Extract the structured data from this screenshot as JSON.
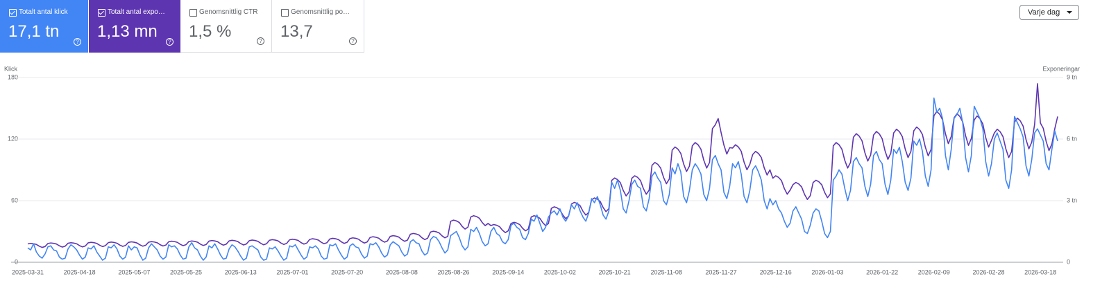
{
  "metrics": [
    {
      "label": "Totalt antal klick",
      "value": "17,1 tn"
    },
    {
      "label": "Totalt antal expo…",
      "value": "1,13 mn"
    },
    {
      "label": "Genomsnittlig CTR",
      "value": "1,5 %"
    },
    {
      "label": "Genomsnittlig po…",
      "value": "13,7"
    }
  ],
  "period_select": "Varje dag",
  "chart_data": {
    "type": "line",
    "y_label": "Klick",
    "y2_label": "Exponeringar",
    "categories": [
      "2025-03-31",
      null,
      null,
      null,
      null,
      null,
      null,
      null,
      null,
      null,
      null,
      null,
      null,
      null,
      null,
      null,
      null,
      null,
      "2025-04-18",
      null,
      null,
      null,
      null,
      null,
      null,
      null,
      null,
      null,
      null,
      null,
      null,
      null,
      null,
      null,
      null,
      null,
      null,
      "2025-05-07",
      null,
      null,
      null,
      null,
      null,
      null,
      null,
      null,
      null,
      null,
      null,
      null,
      null,
      null,
      null,
      null,
      null,
      "2025-05-25",
      null,
      null,
      null,
      null,
      null,
      null,
      null,
      null,
      null,
      null,
      null,
      null,
      null,
      null,
      null,
      null,
      null,
      null,
      "2025-06-13",
      null,
      null,
      null,
      null,
      null,
      null,
      null,
      null,
      null,
      null,
      null,
      null,
      null,
      null,
      null,
      null,
      null,
      "2025-07-01",
      null,
      null,
      null,
      null,
      null,
      null,
      null,
      null,
      null,
      null,
      null,
      null,
      null,
      null,
      null,
      null,
      null,
      null,
      "2025-07-20",
      null,
      null,
      null,
      null,
      null,
      null,
      null,
      null,
      null,
      null,
      null,
      null,
      null,
      null,
      null,
      null,
      null,
      null,
      "2025-08-08",
      null,
      null,
      null,
      null,
      null,
      null,
      null,
      null,
      null,
      null,
      null,
      null,
      null,
      null,
      null,
      null,
      null,
      "2025-08-26",
      null,
      null,
      null,
      null,
      null,
      null,
      null,
      null,
      null,
      null,
      null,
      null,
      null,
      null,
      null,
      null,
      null,
      null,
      "2025-09-14",
      null,
      null,
      null,
      null,
      null,
      null,
      null,
      null,
      null,
      null,
      null,
      null,
      null,
      null,
      null,
      null,
      null,
      "2025-10-02",
      null,
      null,
      null,
      null,
      null,
      null,
      null,
      null,
      null,
      null,
      null,
      null,
      null,
      null,
      null,
      null,
      null,
      null,
      "2025-10-21",
      null,
      null,
      null,
      null,
      null,
      null,
      null,
      null,
      null,
      null,
      null,
      null,
      null,
      null,
      null,
      null,
      null,
      "2025-11-08",
      null,
      null,
      null,
      null,
      null,
      null,
      null,
      null,
      null,
      null,
      null,
      null,
      null,
      null,
      null,
      null,
      null,
      null,
      "2025-11-27",
      null,
      null,
      null,
      null,
      null,
      null,
      null,
      null,
      null,
      null,
      null,
      null,
      null,
      null,
      null,
      null,
      null,
      null,
      "2025-12-16",
      null,
      null,
      null,
      null,
      null,
      null,
      null,
      null,
      null,
      null,
      null,
      null,
      null,
      null,
      null,
      null,
      null,
      "2026-01-03",
      null,
      null,
      null,
      null,
      null,
      null,
      null,
      null,
      null,
      null,
      null,
      null,
      null,
      null,
      null,
      null,
      null,
      null,
      "2026-01-22",
      null,
      null,
      null,
      null,
      null,
      null,
      null,
      null,
      null,
      null,
      null,
      null,
      null,
      null,
      null,
      null,
      null,
      "2026-02-09",
      null,
      null,
      null,
      null,
      null,
      null,
      null,
      null,
      null,
      null,
      null,
      null,
      null,
      null,
      null,
      null,
      null,
      null,
      "2026-02-28",
      null,
      null,
      null,
      null,
      null,
      null,
      null,
      null,
      null,
      null,
      null,
      null,
      null,
      null,
      null,
      null,
      null,
      "2026-03-18",
      null,
      null,
      null,
      null,
      null,
      null
    ],
    "series": [
      {
        "name": "Totalt antal exponeringar",
        "color": "#5e35b1",
        "axis": "y2",
        "values": [
          893,
          918,
          901,
          867,
          782,
          723,
          765,
          914,
          940,
          922,
          887,
          800,
          740,
          783,
          924,
          950,
          933,
          898,
          810,
          748,
          792,
          945,
          972,
          954,
          918,
          828,
          765,
          810,
          956,
          983,
          965,
          928,
          837,
          774,
          819,
          966,
          994,
          975,
          938,
          846,
          782,
          828,
          977,
          1004,
          986,
          949,
          856,
          791,
          837,
          998,
          1026,
          1007,
          969,
          874,
          808,
          855,
          1008,
          1037,
          1018,
          979,
          883,
          816,
          864,
          1029,
          1058,
          1039,
          1000,
          902,
          833,
          882,
          1040,
          1069,
          1049,
          1010,
          911,
          842,
          891,
          1050,
          1080,
          1060,
          1020,
          920,
          850,
          900,
          1071,
          1102,
          1081,
          1040,
          938,
          867,
          918,
          1092,
          1123,
          1102,
          1061,
          957,
          884,
          936,
          1113,
          1145,
          1124,
          1081,
          975,
          901,
          954,
          1134,
          1166,
          1145,
          1102,
          994,
          918,
          972,
          1155,
          1188,
          1166,
          1122,
          1012,
          935,
          990,
          1208,
          1242,
          1219,
          1173,
          1058,
          978,
          1035,
          1260,
          1296,
          1272,
          1224,
          1104,
          1020,
          1080,
          1365,
          1404,
          1378,
          1326,
          1196,
          1105,
          1170,
          1470,
          1512,
          1484,
          1428,
          1288,
          1190,
          1260,
          1995,
          2052,
          2014,
          1938,
          1748,
          1615,
          1710,
          2205,
          2268,
          2226,
          2142,
          1932,
          1785,
          1890,
          1785,
          1836,
          1802,
          1734,
          1564,
          1445,
          1530,
          1890,
          1944,
          1908,
          1836,
          1656,
          1530,
          1620,
          2205,
          2268,
          2226,
          2142,
          1932,
          1785,
          1890,
          2625,
          2700,
          2650,
          2550,
          2300,
          2125,
          2250,
          2835,
          2916,
          2862,
          2754,
          2484,
          2295,
          2430,
          3045,
          3132,
          3074,
          2958,
          2668,
          2465,
          2610,
          3990,
          4104,
          4028,
          3876,
          3496,
          3230,
          3420,
          4095,
          4212,
          4134,
          3978,
          3588,
          3315,
          3510,
          4725,
          4860,
          4770,
          4590,
          4140,
          3825,
          4050,
          5460,
          5616,
          5512,
          5304,
          4784,
          4420,
          4680,
          5670,
          5832,
          5724,
          5508,
          4968,
          4590,
          4860,
          6510,
          6696,
          7000,
          6324,
          5704,
          5270,
          5580,
          5565,
          5724,
          5618,
          5406,
          4876,
          4505,
          4770,
          5250,
          5400,
          5300,
          5100,
          4600,
          4250,
          4500,
          4095,
          4212,
          4134,
          3978,
          3588,
          3315,
          3510,
          3780,
          3888,
          3816,
          3672,
          3312,
          3060,
          3240,
          3885,
          3996,
          3922,
          3774,
          3404,
          3145,
          3330,
          5670,
          5832,
          5724,
          5508,
          4968,
          4590,
          4860,
          6090,
          6264,
          6148,
          5916,
          5336,
          4930,
          5220,
          6195,
          6372,
          6254,
          6018,
          5428,
          5015,
          5310,
          6300,
          6480,
          6360,
          6120,
          5520,
          5100,
          5400,
          6405,
          6588,
          6466,
          6222,
          5612,
          5185,
          5490,
          7140,
          7344,
          7208,
          6936,
          6256,
          5780,
          6120,
          7035,
          7236,
          7102,
          6834,
          6164,
          5695,
          6030,
          6930,
          7128,
          6996,
          6732,
          6072,
          5610,
          5940,
          6300,
          6480,
          6360,
          6120,
          5520,
          5100,
          5400,
          6825,
          7020,
          6890,
          6630,
          5980,
          5525,
          5850,
          6720,
          8700,
          6784,
          6528,
          5888,
          5440,
          5760,
          6500,
          7100
        ]
      },
      {
        "name": "Totalt antal klick",
        "color": "#4285f4",
        "values": [
          14,
          12,
          18,
          10,
          6,
          4,
          8,
          15,
          16,
          12,
          11,
          5,
          3,
          4,
          13,
          17,
          15,
          12,
          7,
          3,
          5,
          14,
          13,
          16,
          10,
          6,
          2,
          4,
          15,
          14,
          17,
          13,
          6,
          3,
          5,
          16,
          12,
          15,
          14,
          7,
          2,
          4,
          14,
          18,
          15,
          12,
          6,
          3,
          5,
          17,
          15,
          16,
          13,
          7,
          3,
          4,
          15,
          19,
          14,
          12,
          6,
          2,
          5,
          16,
          14,
          18,
          13,
          7,
          3,
          4,
          13,
          17,
          15,
          11,
          6,
          2,
          4,
          15,
          16,
          14,
          12,
          5,
          2,
          3,
          14,
          13,
          15,
          11,
          6,
          2,
          4,
          16,
          15,
          17,
          12,
          7,
          3,
          5,
          15,
          14,
          16,
          13,
          6,
          3,
          4,
          17,
          16,
          18,
          12,
          7,
          3,
          5,
          16,
          18,
          15,
          14,
          8,
          4,
          6,
          18,
          17,
          19,
          15,
          9,
          5,
          7,
          17,
          20,
          18,
          16,
          10,
          6,
          8,
          20,
          22,
          19,
          18,
          11,
          7,
          9,
          22,
          25,
          24,
          20,
          14,
          9,
          12,
          26,
          28,
          30,
          24,
          16,
          12,
          15,
          32,
          30,
          34,
          28,
          20,
          16,
          18,
          30,
          34,
          28,
          26,
          20,
          18,
          22,
          36,
          38,
          34,
          32,
          24,
          22,
          28,
          42,
          40,
          46,
          38,
          30,
          34,
          44,
          48,
          50,
          46,
          52,
          44,
          40,
          45,
          56,
          52,
          58,
          50,
          44,
          40,
          48,
          62,
          58,
          64,
          56,
          46,
          42,
          50,
          78,
          72,
          80,
          70,
          52,
          48,
          60,
          76,
          80,
          74,
          72,
          54,
          50,
          62,
          84,
          88,
          82,
          78,
          60,
          56,
          66,
          92,
          86,
          96,
          88,
          64,
          58,
          70,
          90,
          96,
          92,
          86,
          66,
          60,
          72,
          100,
          104,
          96,
          90,
          68,
          62,
          74,
          96,
          92,
          98,
          86,
          64,
          58,
          70,
          90,
          94,
          88,
          80,
          60,
          52,
          62,
          56,
          60,
          52,
          48,
          40,
          34,
          38,
          50,
          54,
          48,
          42,
          30,
          28,
          36,
          48,
          52,
          50,
          40,
          28,
          24,
          30,
          80,
          84,
          90,
          86,
          72,
          60,
          70,
          98,
          102,
          96,
          92,
          74,
          64,
          76,
          104,
          108,
          100,
          96,
          76,
          66,
          80,
          110,
          106,
          112,
          98,
          78,
          70,
          82,
          118,
          114,
          120,
          108,
          84,
          74,
          90,
          160,
          146,
          150,
          140,
          104,
          90,
          110,
          140,
          144,
          150,
          136,
          102,
          88,
          104,
          152,
          146,
          140,
          130,
          98,
          84,
          96,
          120,
          126,
          118,
          110,
          80,
          72,
          90,
          142,
          136,
          130,
          122,
          94,
          84,
          100,
          126,
          130,
          124,
          118,
          96,
          90,
          110,
          128,
          118
        ]
      }
    ],
    "ylim": [
      0,
      180
    ],
    "yticks": [
      0,
      60,
      120,
      180
    ],
    "y2lim": [
      0,
      9000
    ],
    "y2ticks": [
      0,
      {
        "value": 3000,
        "label": "3 tn"
      },
      {
        "value": 6000,
        "label": "6 tn"
      },
      {
        "value": 9000,
        "label": "9 tn"
      }
    ],
    "grid": true
  }
}
